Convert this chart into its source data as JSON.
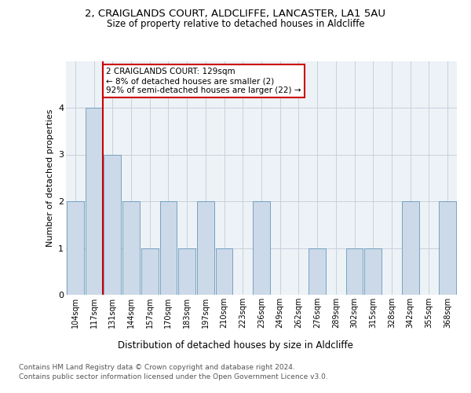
{
  "title1": "2, CRAIGLANDS COURT, ALDCLIFFE, LANCASTER, LA1 5AU",
  "title2": "Size of property relative to detached houses in Aldcliffe",
  "xlabel": "Distribution of detached houses by size in Aldcliffe",
  "ylabel": "Number of detached properties",
  "categories": [
    "104sqm",
    "117sqm",
    "131sqm",
    "144sqm",
    "157sqm",
    "170sqm",
    "183sqm",
    "197sqm",
    "210sqm",
    "223sqm",
    "236sqm",
    "249sqm",
    "262sqm",
    "276sqm",
    "289sqm",
    "302sqm",
    "315sqm",
    "328sqm",
    "342sqm",
    "355sqm",
    "368sqm"
  ],
  "values": [
    2,
    4,
    3,
    2,
    1,
    2,
    1,
    2,
    1,
    0,
    2,
    0,
    0,
    1,
    0,
    1,
    1,
    0,
    2,
    0,
    2
  ],
  "bar_color": "#ccd9e8",
  "bar_edge_color": "#6699bb",
  "vline_color": "#cc0000",
  "annotation_text": "2 CRAIGLANDS COURT: 129sqm\n← 8% of detached houses are smaller (2)\n92% of semi-detached houses are larger (22) →",
  "annotation_box_facecolor": "white",
  "annotation_box_edgecolor": "#cc0000",
  "ylim_max": 5,
  "bg_color": "#edf2f7",
  "grid_color": "#c8d0da",
  "footer1": "Contains HM Land Registry data © Crown copyright and database right 2024.",
  "footer2": "Contains public sector information licensed under the Open Government Licence v3.0."
}
